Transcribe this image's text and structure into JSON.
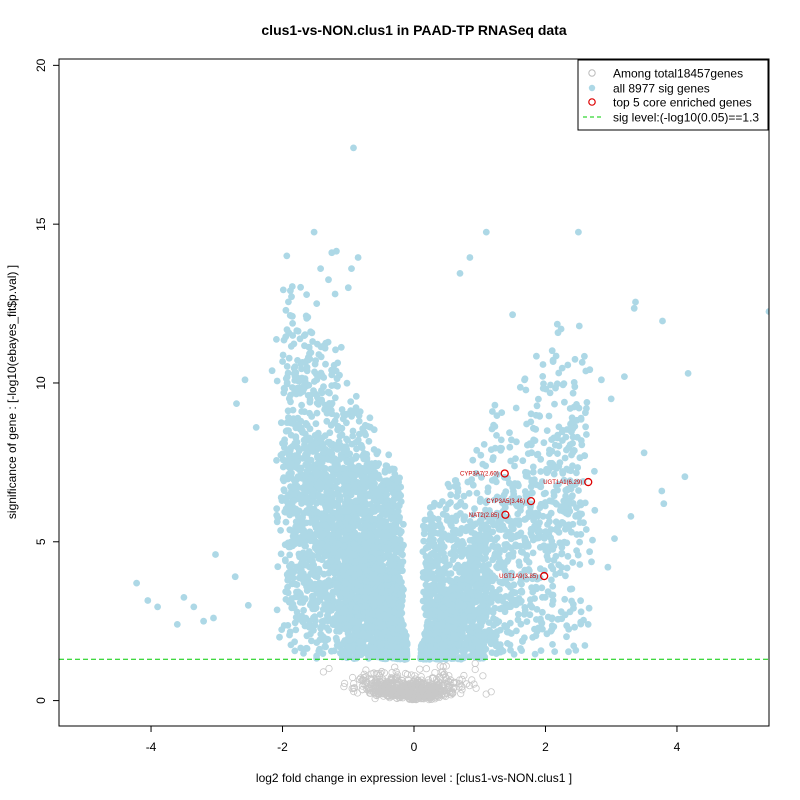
{
  "chart_data": {
    "type": "scatter",
    "title": "clus1-vs-NON.clus1 in PAAD-TP RNASeq data",
    "xlabel": "log2 fold change in expression level : [clus1-vs-NON.clus1 ]",
    "ylabel": "significance of gene : [-log10(ebayes_fit$p.val) ]",
    "xlim": [
      -5.4,
      5.4
    ],
    "ylim": [
      -0.8,
      20.2
    ],
    "xticks": [
      -4,
      -2,
      0,
      2,
      4
    ],
    "yticks": [
      0,
      5,
      10,
      15,
      20
    ],
    "sig_level": 1.3,
    "colors": {
      "all": "#cccccc",
      "sig": "#add8e6",
      "core": "#dd0000",
      "sigline": "#00cc00"
    },
    "legend": {
      "position": "top-right",
      "entries": [
        "Among total18457genes",
        "all 8977 sig genes",
        "top 5 core enriched genes",
        "sig level:(-log10(0.05)==1.3"
      ]
    },
    "core_genes": [
      {
        "label": "CYP3A7(2.60)",
        "x": 1.38,
        "y": 7.15
      },
      {
        "label": "UGT1A1(6.29)",
        "x": 2.65,
        "y": 6.88
      },
      {
        "label": "CYP3A5(3.46)",
        "x": 1.78,
        "y": 6.28
      },
      {
        "label": "NAT2(2.85)",
        "x": 1.39,
        "y": 5.85
      },
      {
        "label": "UGT1A9(3.85)",
        "x": 1.98,
        "y": 3.92
      }
    ],
    "outlier_points": [
      [
        -0.92,
        17.4
      ],
      [
        -1.52,
        14.75
      ],
      [
        1.1,
        14.75
      ],
      [
        2.5,
        14.75
      ],
      [
        -1.25,
        14.1
      ],
      [
        -1.18,
        14.15
      ],
      [
        0.85,
        13.95
      ],
      [
        -0.85,
        13.95
      ],
      [
        -1.42,
        13.6
      ],
      [
        -0.95,
        13.6
      ],
      [
        -1.3,
        13.25
      ],
      [
        0.7,
        13.45
      ],
      [
        -1.0,
        13.0
      ],
      [
        -1.2,
        12.8
      ],
      [
        3.37,
        12.55
      ],
      [
        3.35,
        12.35
      ],
      [
        -1.48,
        12.5
      ],
      [
        1.5,
        12.15
      ],
      [
        -1.85,
        12.1
      ],
      [
        5.4,
        12.25
      ],
      [
        3.78,
        11.95
      ],
      [
        2.18,
        11.85
      ],
      [
        -3.5,
        3.25
      ],
      [
        -4.22,
        3.7
      ],
      [
        -4.05,
        3.15
      ],
      [
        -3.9,
        2.95
      ],
      [
        -3.6,
        2.4
      ],
      [
        -3.2,
        2.5
      ],
      [
        -3.05,
        2.6
      ],
      [
        -3.02,
        4.6
      ],
      [
        -3.35,
        2.95
      ],
      [
        -2.52,
        3.0
      ],
      [
        -2.72,
        3.9
      ],
      [
        -2.7,
        9.35
      ],
      [
        -2.57,
        10.1
      ],
      [
        4.17,
        10.3
      ],
      [
        4.12,
        7.05
      ],
      [
        3.77,
        6.6
      ],
      [
        3.8,
        6.2
      ],
      [
        3.5,
        7.8
      ],
      [
        3.3,
        5.8
      ],
      [
        3.05,
        5.1
      ],
      [
        2.95,
        4.2
      ],
      [
        2.65,
        2.4
      ],
      [
        2.3,
        2.7
      ],
      [
        -2.0,
        8.1
      ],
      [
        -2.4,
        8.6
      ],
      [
        2.85,
        10.1
      ],
      [
        3.0,
        9.5
      ],
      [
        3.2,
        10.2
      ]
    ]
  }
}
